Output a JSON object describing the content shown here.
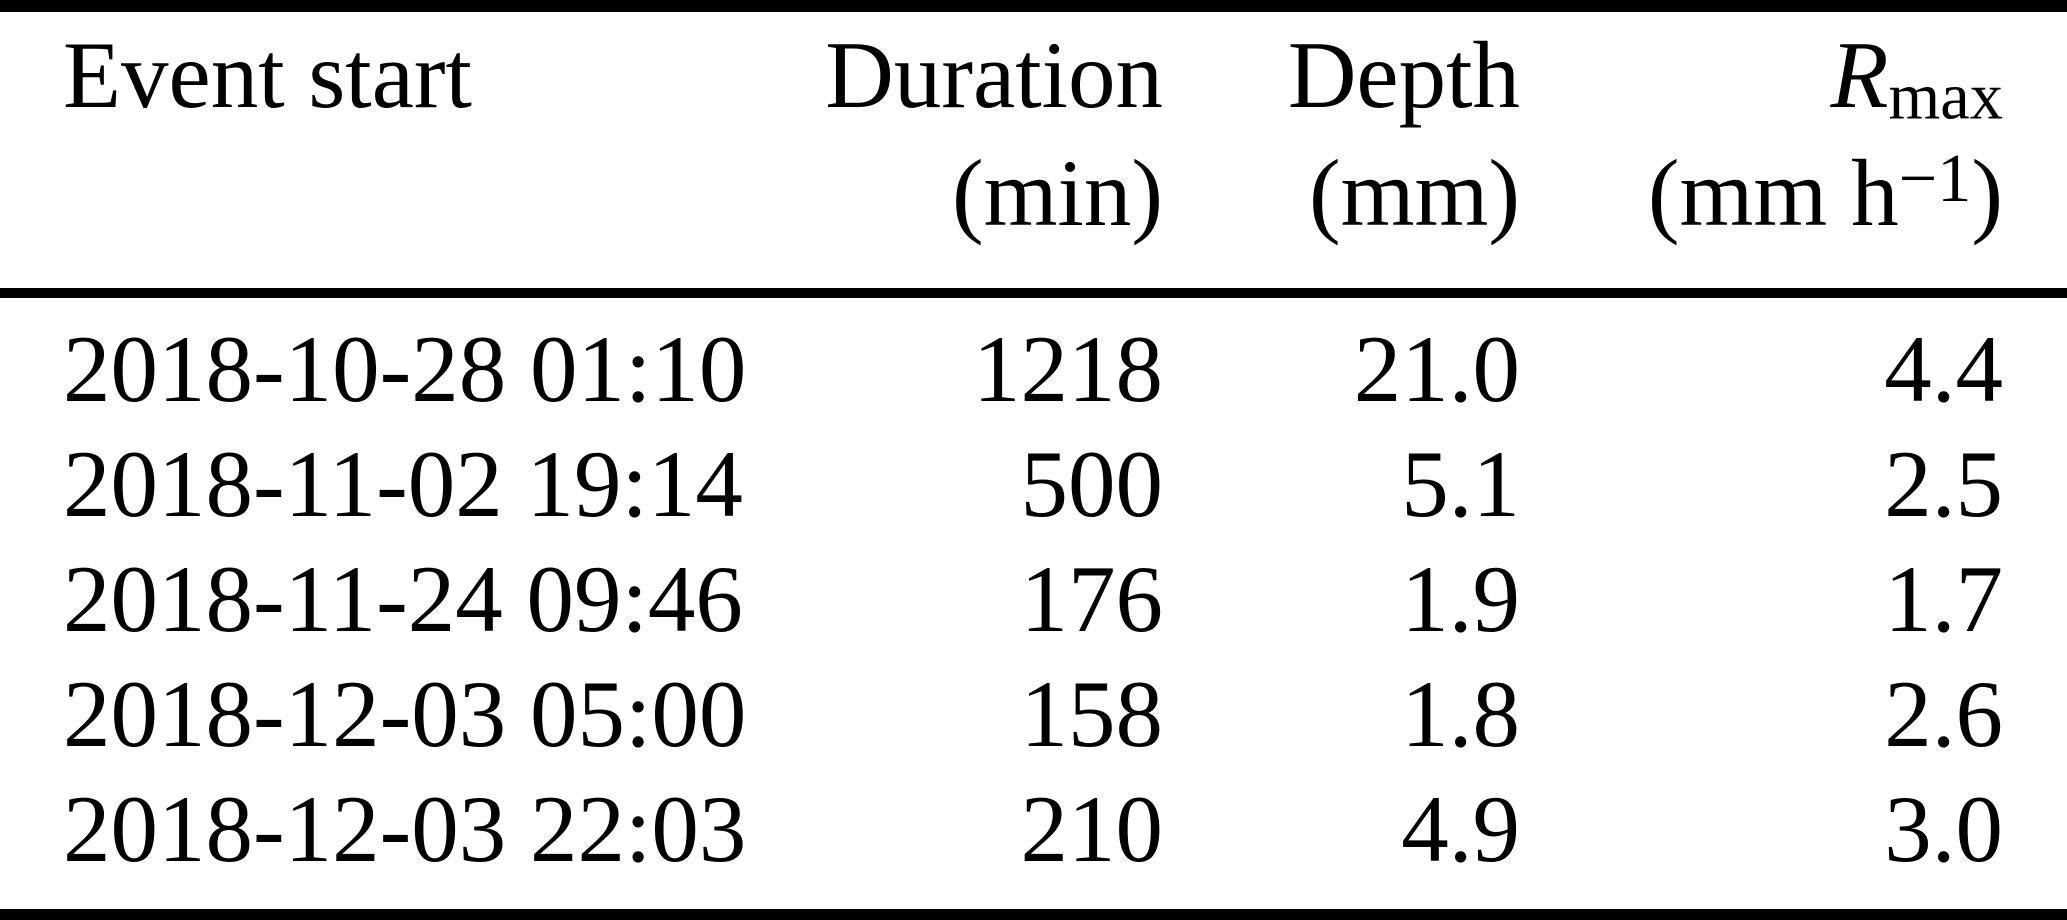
{
  "page": {
    "background_color": "#ffffff",
    "text_color": "#000000",
    "rule_color": "#000000"
  },
  "table": {
    "header": {
      "event_start": {
        "line1": "Event start",
        "line2": ""
      },
      "duration": {
        "line1": "Duration",
        "line2": "(min)"
      },
      "depth": {
        "line1": "Depth",
        "line2": "(mm)"
      },
      "rmax": {
        "symbol": "R",
        "symbol_sub": "max",
        "unit_open": "(mm h",
        "unit_exp": "−1",
        "unit_close": ")"
      }
    },
    "rows": [
      {
        "event_start": "2018-10-28 01:10",
        "duration": "1218",
        "depth": "21.0",
        "rmax": "4.4"
      },
      {
        "event_start": "2018-11-02 19:14",
        "duration": "500",
        "depth": "5.1",
        "rmax": "2.5"
      },
      {
        "event_start": "2018-11-24 09:46",
        "duration": "176",
        "depth": "1.9",
        "rmax": "1.7"
      },
      {
        "event_start": "2018-12-03 05:00",
        "duration": "158",
        "depth": "1.8",
        "rmax": "2.6"
      },
      {
        "event_start": "2018-12-03 22:03",
        "duration": "210",
        "depth": "4.9",
        "rmax": "3.0"
      }
    ]
  },
  "chart_data": {
    "type": "table",
    "columns": [
      "Event start",
      "Duration (min)",
      "Depth (mm)",
      "Rmax (mm h−1)"
    ],
    "rows": [
      [
        "2018-10-28 01:10",
        1218,
        21.0,
        4.4
      ],
      [
        "2018-11-02 19:14",
        500,
        5.1,
        2.5
      ],
      [
        "2018-11-24 09:46",
        176,
        1.9,
        1.7
      ],
      [
        "2018-12-03 05:00",
        158,
        1.8,
        2.6
      ],
      [
        "2018-12-03 22:03",
        210,
        4.9,
        3.0
      ]
    ]
  }
}
